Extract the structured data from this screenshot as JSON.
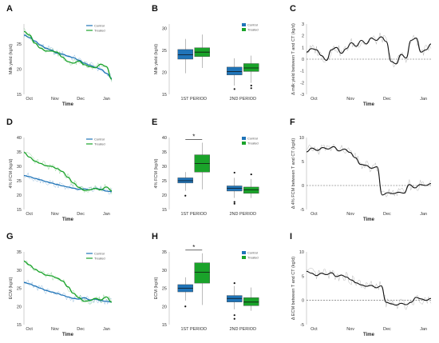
{
  "colors": {
    "control": "#1f74b8",
    "treated": "#1aa32a",
    "raw": "#b8b8b8",
    "line": "#111111"
  },
  "rows": [
    {
      "line_panel": {
        "letter": "A",
        "ylabel": "Milk yield (kg/d)",
        "xlabel": "Time"
      },
      "box_panel": {
        "letter": "B",
        "ylabel": "Milk yield (kg/d)",
        "sig_marker": ""
      },
      "diff_panel": {
        "letter": "C",
        "ylabel": "Δ milk yield between T and CT (kg/d)",
        "xlabel": "Time"
      }
    },
    {
      "line_panel": {
        "letter": "D",
        "ylabel": "4% FCM (kg/d)",
        "xlabel": "Time"
      },
      "box_panel": {
        "letter": "E",
        "ylabel": "4% FCM (kg/d)",
        "sig_marker": "*"
      },
      "diff_panel": {
        "letter": "F",
        "ylabel": "Δ 4% FCM between T and CT (kg/d)",
        "xlabel": "Time"
      }
    },
    {
      "line_panel": {
        "letter": "G",
        "ylabel": "ECM (kg/d)",
        "xlabel": "Time"
      },
      "box_panel": {
        "letter": "H",
        "ylabel": "ECM (kg/d)",
        "sig_marker": "*"
      },
      "diff_panel": {
        "letter": "I",
        "ylabel": "Δ ECM between T and CT (kg/d)",
        "xlabel": "Time"
      }
    }
  ],
  "chart_data": [
    {
      "type": "line",
      "panel": "A",
      "ylabel": "Milk yield (kg/d)",
      "xlabel": "Time",
      "x_ticks": [
        "Oct",
        "Nov",
        "Dec",
        "Jan"
      ],
      "ylim": [
        15,
        29
      ],
      "y_ticks": [
        15,
        20,
        25
      ],
      "legend": [
        "Control",
        "Treated"
      ],
      "legend_position": "top-right",
      "series": [
        {
          "name": "Control",
          "values": [
            26.8,
            26.3,
            25.6,
            24.8,
            24.2,
            23.8,
            23.2,
            23.0,
            22.6,
            22.3,
            21.8,
            21.2,
            20.8,
            20.4,
            20.0,
            19.2,
            18.2
          ]
        },
        {
          "name": "Treated",
          "values": [
            27.5,
            26.8,
            25.2,
            24.2,
            23.6,
            23.6,
            23.4,
            22.4,
            21.5,
            21.2,
            21.6,
            20.9,
            20.5,
            20.3,
            21.0,
            20.5,
            18.0
          ]
        }
      ]
    },
    {
      "type": "box",
      "panel": "B",
      "ylabel": "Milk yield (kg/d)",
      "categories": [
        "1ST PERIOD",
        "2ND PERIOD"
      ],
      "ylim": [
        15,
        31
      ],
      "y_ticks": [
        15,
        20,
        25,
        30
      ],
      "legend": [
        "Control",
        "Treated"
      ],
      "legend_position": "top-right",
      "series": [
        {
          "name": "Control",
          "boxes": [
            {
              "min": 19.8,
              "q1": 23.0,
              "median": 24.0,
              "q3": 25.2,
              "max": 27.6,
              "outliers": []
            },
            {
              "min": 17.0,
              "q1": 19.4,
              "median": 20.2,
              "q3": 21.2,
              "max": 23.2,
              "outliers": [
                16.2
              ]
            }
          ]
        },
        {
          "name": "Treated",
          "boxes": [
            {
              "min": 21.0,
              "q1": 23.6,
              "median": 24.6,
              "q3": 25.6,
              "max": 28.6,
              "outliers": []
            },
            {
              "min": 17.6,
              "q1": 20.2,
              "median": 21.0,
              "q3": 22.0,
              "max": 23.8,
              "outliers": [
                16.4,
                17.0
              ]
            }
          ]
        }
      ]
    },
    {
      "type": "line",
      "panel": "C",
      "ylabel": "Δ milk yield between T and CT (kg/d)",
      "xlabel": "Time",
      "x_ticks": [
        "Oct",
        "Nov",
        "Dec",
        "Jan"
      ],
      "ylim": [
        -3,
        3
      ],
      "y_ticks": [
        -3,
        -2,
        -1,
        0,
        1,
        2,
        3
      ],
      "reference_line": 0,
      "series": [
        {
          "name": "",
          "values": [
            0.6,
            0.9,
            0.8,
            0.3,
            -0.1,
            0.8,
            1.0,
            0.5,
            0.9,
            1.4,
            1.1,
            1.6,
            1.3,
            1.8,
            1.6,
            1.9,
            1.5,
            -0.2,
            -0.4,
            0.4,
            0.1,
            1.6,
            1.8,
            0.6,
            0.8,
            1.3
          ]
        }
      ]
    },
    {
      "type": "line",
      "panel": "D",
      "ylabel": "4% FCM (kg/d)",
      "xlabel": "Time",
      "x_ticks": [
        "Oct",
        "Nov",
        "Dec",
        "Jan"
      ],
      "ylim": [
        15,
        40
      ],
      "y_ticks": [
        15,
        20,
        25,
        30,
        35,
        40
      ],
      "legend": [
        "Control",
        "Treated"
      ],
      "legend_position": "top-right",
      "series": [
        {
          "name": "Control",
          "values": [
            26.8,
            26.4,
            25.8,
            25.3,
            24.7,
            24.2,
            23.7,
            23.2,
            22.8,
            22.4,
            22.0,
            22.2,
            21.8,
            22.4,
            22.0,
            21.4,
            21.2
          ]
        },
        {
          "name": "Treated",
          "values": [
            34.8,
            33.2,
            31.8,
            31.0,
            30.2,
            30.0,
            29.2,
            28.2,
            26.2,
            24.2,
            22.7,
            21.6,
            21.8,
            22.3,
            21.8,
            22.8,
            21.5
          ]
        }
      ]
    },
    {
      "type": "box",
      "panel": "E",
      "ylabel": "4% FCM (kg/d)",
      "categories": [
        "1ST PERIOD",
        "2ND PERIOD"
      ],
      "ylim": [
        15,
        40
      ],
      "y_ticks": [
        15,
        20,
        25,
        30,
        35,
        40
      ],
      "legend": [
        "Control",
        "Treated"
      ],
      "legend_position": "top-right",
      "significance": {
        "category": "1ST PERIOD",
        "marker": "*"
      },
      "series": [
        {
          "name": "Control",
          "boxes": [
            {
              "min": 21.5,
              "q1": 24.2,
              "median": 25.0,
              "q3": 26.0,
              "max": 28.0,
              "outliers": [
                19.8
              ]
            },
            {
              "min": 19.0,
              "q1": 21.4,
              "median": 22.4,
              "q3": 23.2,
              "max": 26.0,
              "outliers": [
                17.6,
                17.0,
                27.8
              ]
            }
          ]
        },
        {
          "name": "Treated",
          "boxes": [
            {
              "min": 22.0,
              "q1": 28.0,
              "median": 31.0,
              "q3": 34.0,
              "max": 38.2,
              "outliers": []
            },
            {
              "min": 19.0,
              "q1": 20.6,
              "median": 21.8,
              "q3": 22.8,
              "max": 25.6,
              "outliers": [
                27.2
              ]
            }
          ]
        }
      ]
    },
    {
      "type": "line",
      "panel": "F",
      "ylabel": "Δ 4% FCM between T and CT (kg/d)",
      "xlabel": "Time",
      "x_ticks": [
        "Oct",
        "Nov",
        "Dec",
        "Jan"
      ],
      "ylim": [
        -5,
        10
      ],
      "y_ticks": [
        -5,
        0,
        5,
        10
      ],
      "reference_line": 0,
      "series": [
        {
          "name": "",
          "values": [
            7.0,
            7.8,
            7.3,
            7.9,
            7.6,
            8.1,
            7.2,
            7.6,
            6.9,
            5.8,
            4.4,
            4.2,
            3.6,
            3.9,
            -2.0,
            -1.5,
            -1.7,
            -1.4,
            -1.6,
            0.2,
            -0.5,
            0.2,
            0.0,
            0.4
          ]
        }
      ]
    },
    {
      "type": "line",
      "panel": "G",
      "ylabel": "ECM (kg/d)",
      "xlabel": "Time",
      "x_ticks": [
        "Oct",
        "Nov",
        "Dec",
        "Jan"
      ],
      "ylim": [
        15,
        35
      ],
      "y_ticks": [
        15,
        20,
        25,
        30,
        35
      ],
      "legend": [
        "Control",
        "Treated"
      ],
      "legend_position": "top-right",
      "series": [
        {
          "name": "Control",
          "values": [
            26.6,
            26.2,
            25.6,
            25.0,
            24.4,
            24.0,
            23.6,
            23.1,
            22.6,
            22.2,
            22.0,
            22.4,
            21.8,
            22.0,
            21.6,
            21.4,
            21.2
          ]
        },
        {
          "name": "Treated",
          "values": [
            32.4,
            31.4,
            30.2,
            29.4,
            28.6,
            28.4,
            27.8,
            27.0,
            25.4,
            23.6,
            22.4,
            21.4,
            21.6,
            22.2,
            21.8,
            22.6,
            21.2
          ]
        }
      ]
    },
    {
      "type": "box",
      "panel": "H",
      "ylabel": "ECM (kg/d)",
      "categories": [
        "1ST PERIOD",
        "2ND PERIOD"
      ],
      "ylim": [
        15,
        35
      ],
      "y_ticks": [
        15,
        20,
        25,
        30,
        35
      ],
      "legend": [
        "Control",
        "Treated"
      ],
      "legend_position": "top-right",
      "significance": {
        "category": "1ST PERIOD",
        "marker": "*"
      },
      "series": [
        {
          "name": "Control",
          "boxes": [
            {
              "min": 21.6,
              "q1": 24.0,
              "median": 25.0,
              "q3": 26.0,
              "max": 28.0,
              "outliers": [
                20.0
              ]
            },
            {
              "min": 19.2,
              "q1": 21.2,
              "median": 22.2,
              "q3": 23.0,
              "max": 25.6,
              "outliers": [
                17.6,
                16.6,
                26.4
              ]
            }
          ]
        },
        {
          "name": "Treated",
          "boxes": [
            {
              "min": 20.4,
              "q1": 26.4,
              "median": 29.4,
              "q3": 32.0,
              "max": 34.6,
              "outliers": []
            },
            {
              "min": 18.8,
              "q1": 20.2,
              "median": 21.2,
              "q3": 22.4,
              "max": 25.2,
              "outliers": []
            }
          ]
        }
      ]
    },
    {
      "type": "line",
      "panel": "I",
      "ylabel": "Δ ECM between T and CT (kg/d)",
      "xlabel": "Time",
      "x_ticks": [
        "Oct",
        "Nov",
        "Dec",
        "Jan"
      ],
      "ylim": [
        -5,
        10
      ],
      "y_ticks": [
        -5,
        0,
        5,
        10
      ],
      "reference_line": 0,
      "series": [
        {
          "name": "",
          "values": [
            6.0,
            5.6,
            5.1,
            5.6,
            5.3,
            5.7,
            4.9,
            5.2,
            4.8,
            4.2,
            3.6,
            3.2,
            2.9,
            3.1,
            2.6,
            3.0,
            -0.4,
            -0.7,
            -1.0,
            -0.6,
            -0.9,
            -0.4,
            0.6,
            0.3,
            0.0,
            0.4
          ]
        }
      ]
    }
  ]
}
